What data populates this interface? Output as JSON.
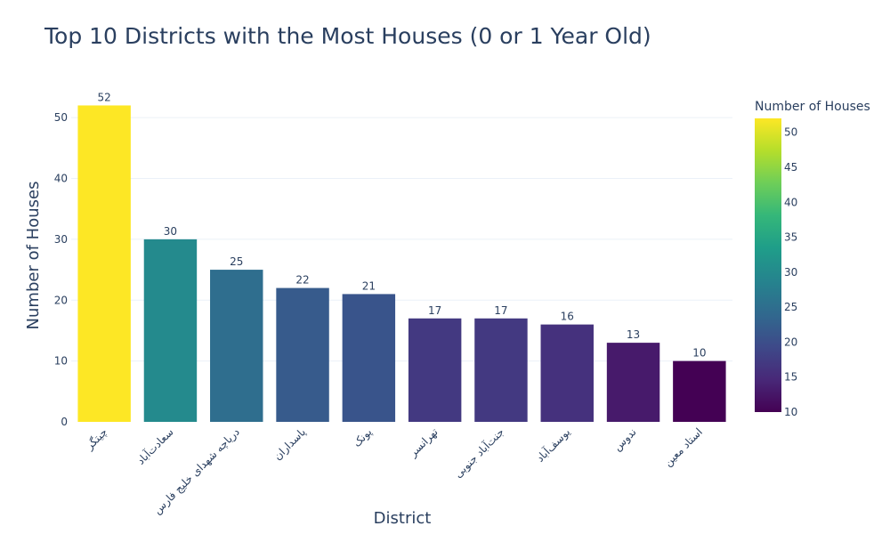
{
  "title": "Top 10 Districts with the Most Houses (0 or 1 Year Old)",
  "chart_data": {
    "type": "bar",
    "categories": [
      "چیتگر",
      "سعادت‌آباد",
      "دریاچه شهدای خلیج فارس",
      "پاسداران",
      "پونک",
      "تهرانسر",
      "جنت‌آباد جنوبی",
      "یوسف‌آباد",
      "ندوس",
      "استاد معین"
    ],
    "values": [
      52,
      30,
      25,
      22,
      21,
      17,
      17,
      16,
      13,
      10
    ],
    "xlabel": "District",
    "ylabel": "Number of Houses",
    "ylim": [
      0,
      54.7
    ],
    "yticks": [
      0,
      10,
      20,
      30,
      40,
      50
    ],
    "grid": true,
    "colorscale": "Viridis",
    "colorbar": {
      "title": "Number of Houses",
      "range": [
        10,
        52
      ],
      "ticks": [
        10,
        15,
        20,
        25,
        30,
        35,
        40,
        45,
        50
      ],
      "placement": "right"
    }
  }
}
